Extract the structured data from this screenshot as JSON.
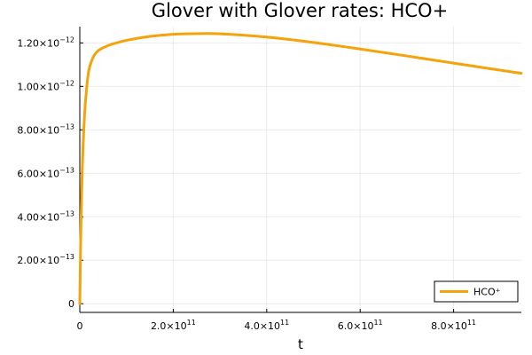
{
  "chart_data": {
    "type": "line",
    "title": "Glover with Glover rates: HCO+",
    "xlabel": "t",
    "ylabel": "",
    "xlim": [
      0,
      945000000000.0
    ],
    "ylim": [
      -4e-14,
      1.275e-12
    ],
    "grid": true,
    "legend_position": "bottom-right",
    "x_ticks": [
      {
        "value": 0,
        "label": "0",
        "exp": ""
      },
      {
        "value": 200000000000.0,
        "label": "2.0×10",
        "exp": "11"
      },
      {
        "value": 400000000000.0,
        "label": "4.0×10",
        "exp": "11"
      },
      {
        "value": 600000000000.0,
        "label": "6.0×10",
        "exp": "11"
      },
      {
        "value": 800000000000.0,
        "label": "8.0×10",
        "exp": "11"
      }
    ],
    "y_ticks": [
      {
        "value": 0,
        "label": "0",
        "exp": ""
      },
      {
        "value": 2e-13,
        "label": "2.00×10",
        "exp": "−13"
      },
      {
        "value": 4e-13,
        "label": "4.00×10",
        "exp": "−13"
      },
      {
        "value": 6e-13,
        "label": "6.00×10",
        "exp": "−13"
      },
      {
        "value": 8e-13,
        "label": "8.00×10",
        "exp": "−13"
      },
      {
        "value": 1e-12,
        "label": "1.00×10",
        "exp": "−12"
      },
      {
        "value": 1.2e-12,
        "label": "1.20×10",
        "exp": "−12"
      }
    ],
    "series": [
      {
        "name": "HCO⁺",
        "color": "#f5a30a",
        "x": [
          0,
          2000000000.0,
          5000000000.0,
          10000000000.0,
          15000000000.0,
          20000000000.0,
          30000000000.0,
          40000000000.0,
          50000000000.0,
          70000000000.0,
          100000000000.0,
          150000000000.0,
          200000000000.0,
          260000000000.0,
          300000000000.0,
          400000000000.0,
          500000000000.0,
          600000000000.0,
          700000000000.0,
          800000000000.0,
          945000000000.0
        ],
        "y": [
          0,
          3e-13,
          6e-13,
          8.6e-13,
          1e-12,
          1.08e-12,
          1.14e-12,
          1.165e-12,
          1.178e-12,
          1.195e-12,
          1.212e-12,
          1.23e-12,
          1.24e-12,
          1.243e-12,
          1.242e-12,
          1.227e-12,
          1.202e-12,
          1.172e-12,
          1.14e-12,
          1.107e-12,
          1.06e-12
        ]
      }
    ]
  }
}
